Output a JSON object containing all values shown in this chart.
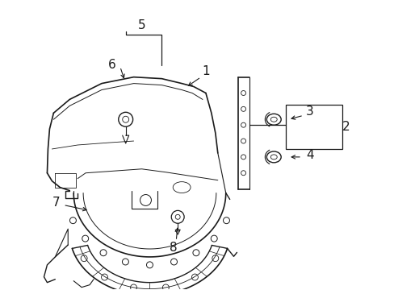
{
  "background_color": "#ffffff",
  "line_color": "#1a1a1a",
  "fig_width": 4.89,
  "fig_height": 3.6,
  "dpi": 100
}
